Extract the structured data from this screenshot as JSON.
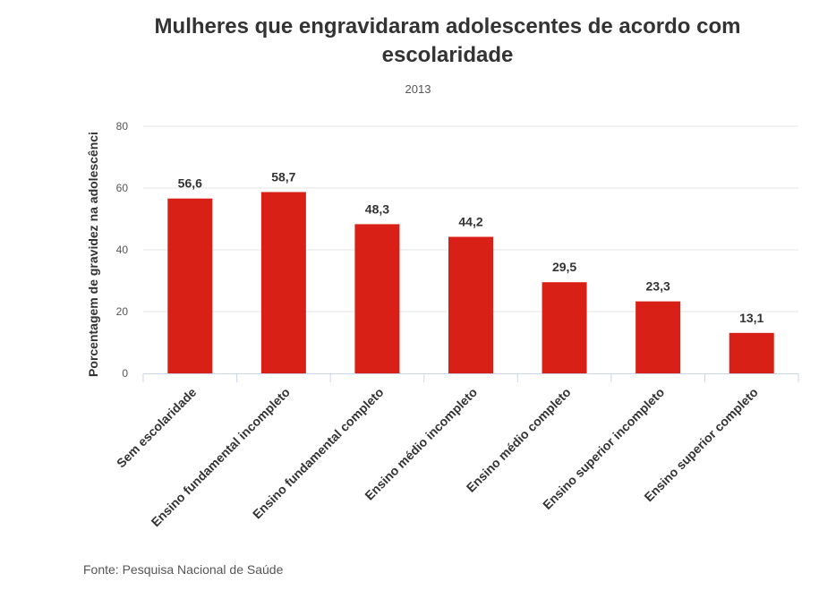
{
  "header": {
    "title": "Mulheres que engravidaram adolescentes de acordo com escolaridade",
    "subtitle": "2013"
  },
  "footer": {
    "source": "Fonte: Pesquisa Nacional de Saúde"
  },
  "colors": {
    "bar": "#d92016",
    "grid": "#e6e6e6",
    "axis": "#ccd6eb"
  },
  "chart_data": {
    "type": "bar",
    "title": "Mulheres que engravidaram adolescentes de acordo com escolaridade",
    "subtitle": "2013",
    "xlabel": "",
    "ylabel": "Porcentagem de gravidez na adolescênci",
    "ylim": [
      0,
      80
    ],
    "yticks": [
      0,
      20,
      40,
      60,
      80
    ],
    "grid": true,
    "categories": [
      "Sem escolaridade",
      "Ensino fundamental incompleto",
      "Ensino fundamental completo",
      "Ensino médio incompleto",
      "Ensino médio completo",
      "Ensino superior incompleto",
      "Ensino superior completo"
    ],
    "values": [
      56.6,
      58.7,
      48.3,
      44.2,
      29.5,
      23.3,
      13.1
    ],
    "data_labels": [
      "56,6",
      "58,7",
      "48,3",
      "44,2",
      "29,5",
      "23,3",
      "13,1"
    ]
  }
}
